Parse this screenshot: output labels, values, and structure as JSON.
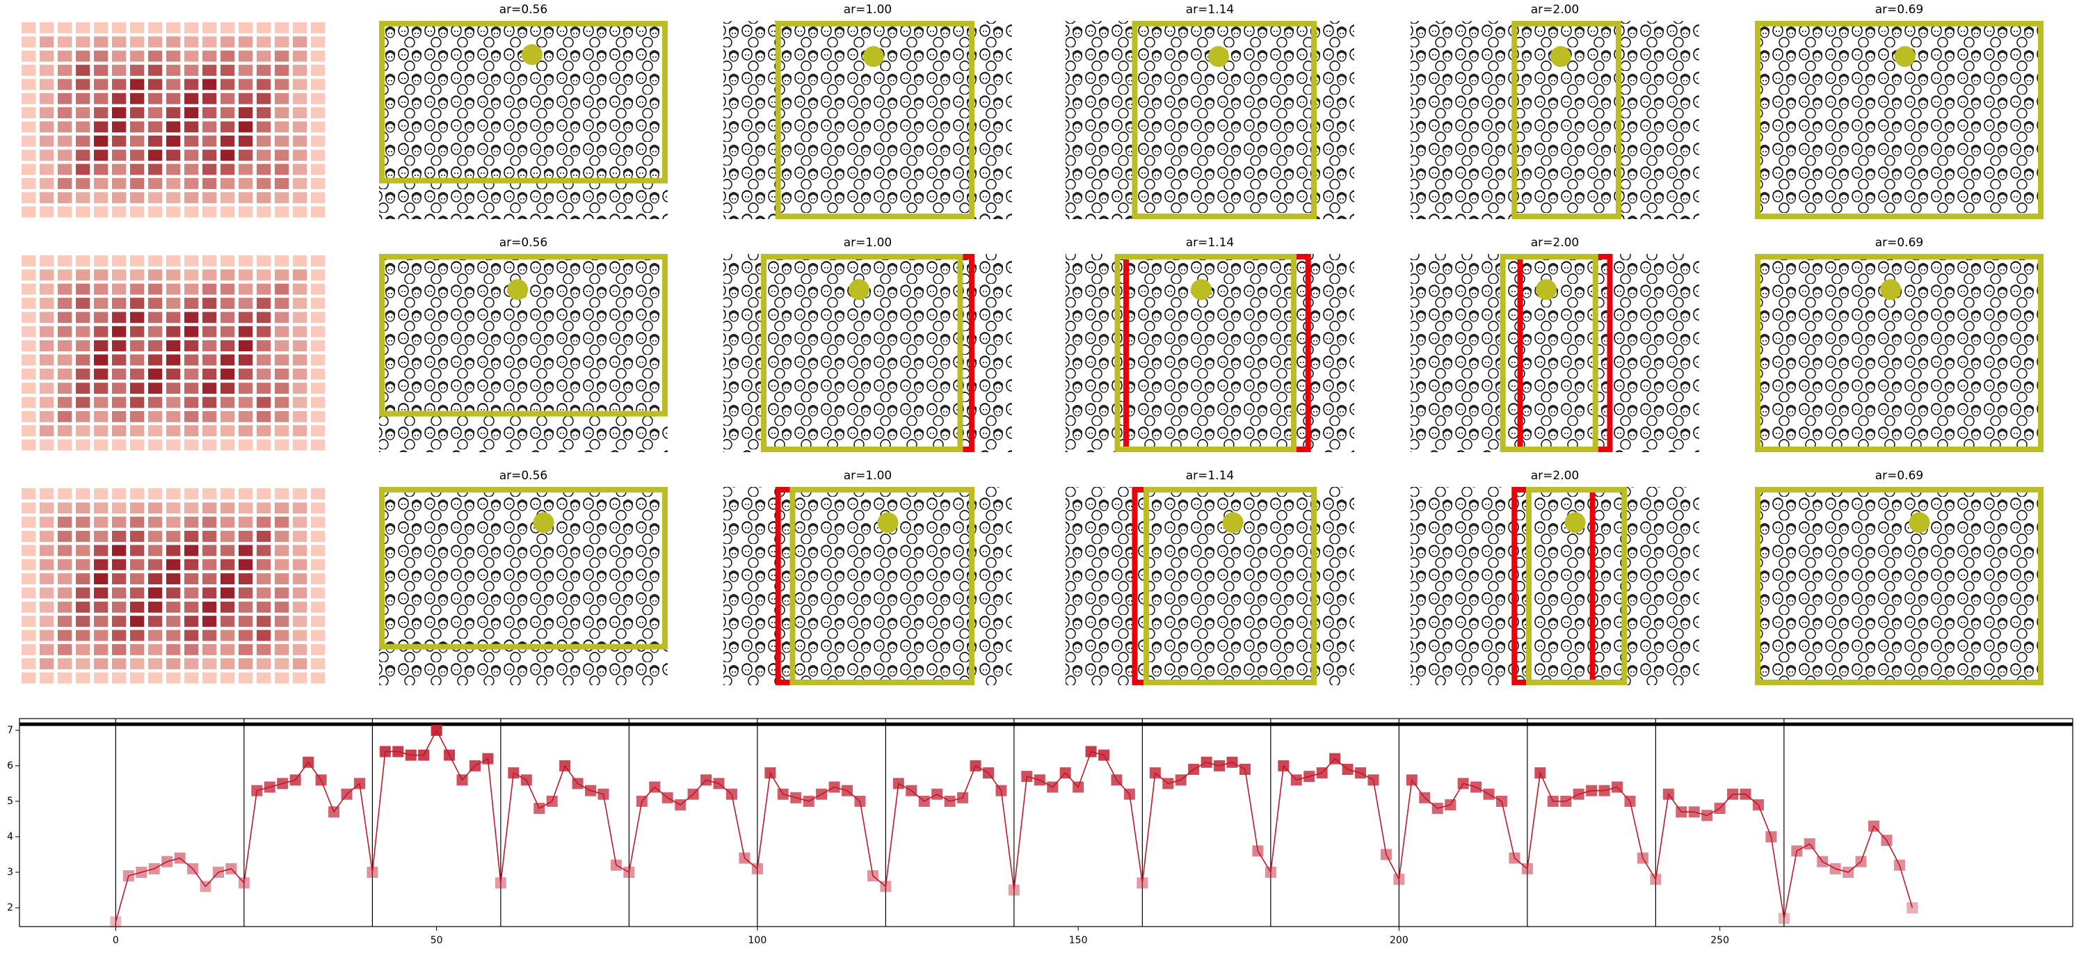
{
  "panel_titles": [
    [
      "ar=0.56",
      "ar=1.00",
      "ar=1.14",
      "ar=2.00",
      "ar=0.69"
    ],
    [
      "ar=0.56",
      "ar=1.00",
      "ar=1.14",
      "ar=2.00",
      "ar=0.69"
    ],
    [
      "ar=0.56",
      "ar=1.00",
      "ar=1.14",
      "ar=2.00",
      "ar=0.69"
    ]
  ],
  "chart_data": {
    "type": "line",
    "color": "#c0182b",
    "x": [
      0,
      2,
      4,
      6,
      8,
      10,
      12,
      14,
      16,
      18,
      20,
      22,
      24,
      26,
      28,
      30,
      32,
      34,
      36,
      38,
      40,
      42,
      44,
      46,
      48,
      50,
      52,
      54,
      56,
      58,
      60,
      62,
      64,
      66,
      68,
      70,
      72,
      74,
      76,
      78,
      80,
      82,
      84,
      86,
      88,
      90,
      92,
      94,
      96,
      98,
      100,
      102,
      104,
      106,
      108,
      110,
      112,
      114,
      116,
      118,
      120,
      122,
      124,
      126,
      128,
      130,
      132,
      134,
      136,
      138,
      140,
      142,
      144,
      146,
      148,
      150,
      152,
      154,
      156,
      158,
      160,
      162,
      164,
      166,
      168,
      170,
      172,
      174,
      176,
      178,
      180,
      182,
      184,
      186,
      188,
      190,
      192,
      194,
      196,
      198,
      200,
      202,
      204,
      206,
      208,
      210,
      212,
      214,
      216,
      218,
      220,
      222,
      224,
      226,
      228,
      230,
      232,
      234,
      236,
      238,
      240,
      242,
      244,
      246,
      248,
      250,
      252,
      254,
      256,
      258,
      260,
      262,
      264,
      266,
      268,
      270,
      272,
      274,
      276,
      278,
      280
    ],
    "values": [
      1.6,
      2.9,
      3.0,
      3.1,
      3.3,
      3.4,
      3.1,
      2.6,
      3.0,
      3.1,
      2.7,
      5.3,
      5.4,
      5.5,
      5.6,
      6.1,
      5.6,
      4.7,
      5.2,
      5.5,
      3.0,
      6.4,
      6.4,
      6.3,
      6.3,
      7.0,
      6.3,
      5.6,
      6.0,
      6.2,
      2.7,
      5.8,
      5.6,
      4.8,
      5.0,
      6.0,
      5.5,
      5.3,
      5.2,
      3.2,
      3.0,
      5.0,
      5.4,
      5.1,
      4.9,
      5.2,
      5.6,
      5.5,
      5.2,
      3.4,
      3.1,
      5.8,
      5.2,
      5.1,
      5.0,
      5.2,
      5.4,
      5.3,
      5.0,
      2.9,
      2.6,
      5.5,
      5.3,
      5.0,
      5.2,
      5.0,
      5.1,
      6.0,
      5.8,
      5.3,
      2.5,
      5.7,
      5.6,
      5.4,
      5.8,
      5.4,
      6.4,
      6.3,
      5.6,
      5.2,
      2.7,
      5.8,
      5.5,
      5.6,
      5.9,
      6.1,
      6.0,
      6.1,
      5.9,
      3.6,
      3.0,
      6.0,
      5.6,
      5.7,
      5.8,
      6.2,
      5.9,
      5.8,
      5.6,
      3.5,
      2.8,
      5.6,
      5.1,
      4.8,
      4.9,
      5.5,
      5.4,
      5.2,
      5.0,
      3.4,
      3.1,
      5.8,
      5.0,
      5.0,
      5.2,
      5.3,
      5.3,
      5.4,
      5.0,
      3.4,
      2.8,
      5.2,
      4.7,
      4.7,
      4.6,
      4.8,
      5.2,
      5.2,
      4.9,
      4.0,
      1.7,
      3.6,
      3.8,
      3.3,
      3.1,
      3.0,
      3.3,
      4.3,
      3.9,
      3.2,
      2.0
    ],
    "xlim": [
      -15,
      305
    ],
    "ylim": [
      1.47,
      7.33
    ],
    "xticks": [
      0,
      50,
      100,
      150,
      200,
      250
    ],
    "yticks": [
      2,
      3,
      4,
      5,
      6,
      7
    ],
    "vlines": [
      0,
      20,
      40,
      60,
      80,
      100,
      120,
      140,
      160,
      180,
      200,
      220,
      240,
      260
    ],
    "hline": 7.17
  }
}
